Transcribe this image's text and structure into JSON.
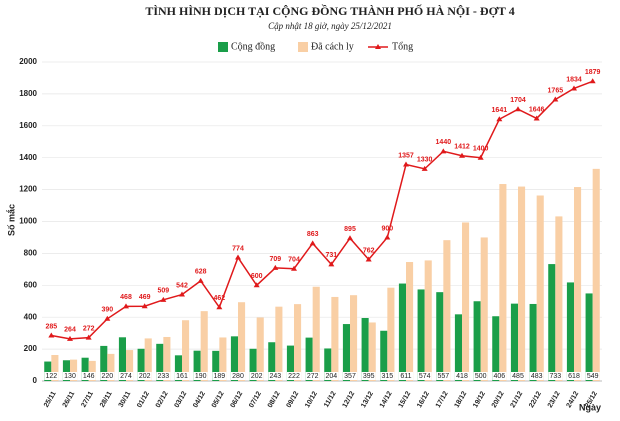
{
  "chart_data": {
    "type": "bar-line",
    "title": "TÌNH HÌNH DỊCH TẠI CỘNG ĐỒNG THÀNH PHỐ HÀ NỘI - ĐỢT 4",
    "subtitle": "Cập nhật 18 giờ, ngày 25/12/2021",
    "y_label": "Số mắc",
    "x_label": "Ngày",
    "categories": [
      "25/11",
      "26/11",
      "27/11",
      "28/11",
      "30/11",
      "01/12",
      "02/12",
      "03/12",
      "04/12",
      "05/12",
      "06/12",
      "07/12",
      "08/12",
      "09/12",
      "10/12",
      "11/12",
      "12/12",
      "13/12",
      "14/12",
      "15/12",
      "16/12",
      "17/12",
      "18/12",
      "19/12",
      "20/12",
      "21/12",
      "22/12",
      "23/12",
      "24/12",
      "25/12"
    ],
    "series": [
      {
        "name": "Cộng đồng",
        "color": "#1a9e49",
        "values": [
          122,
          130,
          146,
          220,
          274,
          202,
          233,
          161,
          190,
          189,
          280,
          202,
          243,
          222,
          272,
          204,
          357,
          395,
          315,
          611,
          574,
          557,
          418,
          500,
          406,
          485,
          483,
          733,
          618,
          549
        ]
      },
      {
        "name": "Đã cách ly",
        "color": "#f9cfa5",
        "values": [
          163,
          134,
          126,
          170,
          194,
          267,
          276,
          381,
          438,
          273,
          494,
          398,
          466,
          482,
          591,
          527,
          538,
          367,
          585,
          746,
          756,
          883,
          994,
          900,
          1235,
          1219,
          1163,
          1032,
          1216,
          1330
        ]
      },
      {
        "name": "Tổng",
        "color": "#e0191b",
        "values": [
          285,
          264,
          272,
          390,
          468,
          469,
          509,
          542,
          628,
          462,
          774,
          600,
          709,
          704,
          863,
          731,
          895,
          762,
          900,
          1357,
          1330,
          1440,
          1412,
          1400,
          1641,
          1704,
          1646,
          1765,
          1834,
          1879
        ]
      }
    ],
    "ylim": [
      0,
      2000
    ],
    "yticks": [
      0,
      200,
      400,
      600,
      800,
      1000,
      1200,
      1400,
      1600,
      1800,
      2000
    ],
    "grid": true
  }
}
